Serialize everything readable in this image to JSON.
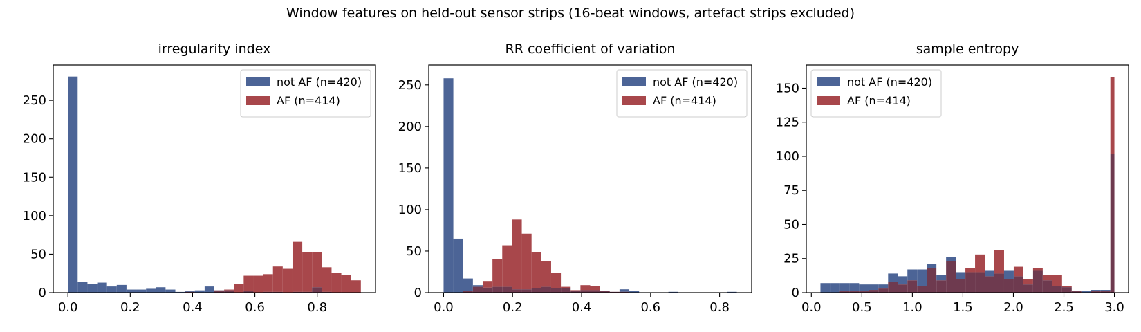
{
  "figure": {
    "suptitle": "Window features on held-out sensor strips (16-beat windows, artefact strips excluded)"
  },
  "colors": {
    "not_af": "#4c6496",
    "af": "#a8474b",
    "overlap": "#6e3a4f"
  },
  "chart_data": [
    {
      "type": "bar",
      "title": "irregularity index",
      "legend_position": "upper right",
      "xlim": [
        -0.047,
        0.987
      ],
      "ylim": [
        0,
        296
      ],
      "xticks": [
        0.0,
        0.2,
        0.4,
        0.6,
        0.8
      ],
      "xtick_labels": [
        "0.0",
        "0.2",
        "0.4",
        "0.6",
        "0.8"
      ],
      "yticks": [
        0,
        50,
        100,
        150,
        200,
        250
      ],
      "ytick_labels": [
        "0",
        "50",
        "100",
        "150",
        "200",
        "250"
      ],
      "bin_edges": [
        0.0,
        0.0313,
        0.0627,
        0.094,
        0.1253,
        0.1567,
        0.188,
        0.2193,
        0.2507,
        0.282,
        0.3133,
        0.3447,
        0.376,
        0.4073,
        0.4387,
        0.47,
        0.5013,
        0.5327,
        0.564,
        0.5953,
        0.6267,
        0.658,
        0.6893,
        0.7207,
        0.752,
        0.7833,
        0.8147,
        0.846,
        0.8773,
        0.9087,
        0.94
      ],
      "series": [
        {
          "name": "not AF (n=420)",
          "values": [
            281,
            14,
            11,
            13,
            8,
            10,
            4,
            4,
            5,
            7,
            4,
            1,
            2,
            3,
            8,
            3,
            3,
            0,
            2,
            0,
            1,
            1,
            0,
            1,
            1,
            7,
            1,
            0,
            0,
            0
          ]
        },
        {
          "name": "AF (n=414)",
          "values": [
            0,
            0,
            0,
            0,
            0,
            0,
            0,
            0,
            0,
            0,
            0,
            0,
            1,
            0,
            0,
            3,
            4,
            11,
            22,
            22,
            24,
            34,
            31,
            66,
            53,
            53,
            33,
            26,
            23,
            16
          ]
        }
      ]
    },
    {
      "type": "bar",
      "title": "RR coefficient of variation",
      "legend_position": "upper right",
      "xlim": [
        -0.043,
        0.893
      ],
      "ylim": [
        0,
        274
      ],
      "xticks": [
        0.0,
        0.2,
        0.4,
        0.6,
        0.8
      ],
      "xtick_labels": [
        "0.0",
        "0.2",
        "0.4",
        "0.6",
        "0.8"
      ],
      "yticks": [
        0,
        50,
        100,
        150,
        200,
        250
      ],
      "ytick_labels": [
        "0",
        "50",
        "100",
        "150",
        "200",
        "250"
      ],
      "bin_edges": [
        0.0,
        0.0283,
        0.0567,
        0.085,
        0.1133,
        0.1417,
        0.17,
        0.1983,
        0.2267,
        0.255,
        0.2833,
        0.3117,
        0.34,
        0.3683,
        0.3967,
        0.425,
        0.4533,
        0.4817,
        0.51,
        0.5383,
        0.5667,
        0.595,
        0.6233,
        0.6517,
        0.68,
        0.7083,
        0.7367,
        0.765,
        0.7933,
        0.8217,
        0.85
      ],
      "series": [
        {
          "name": "not AF (n=420)",
          "values": [
            258,
            65,
            17,
            9,
            6,
            7,
            7,
            4,
            4,
            5,
            7,
            5,
            5,
            2,
            3,
            3,
            2,
            1,
            4,
            2,
            0,
            0,
            0,
            1,
            0,
            0,
            0,
            0,
            0,
            1
          ]
        },
        {
          "name": "AF (n=414)",
          "values": [
            0,
            0,
            2,
            7,
            14,
            40,
            57,
            88,
            71,
            49,
            38,
            24,
            7,
            3,
            9,
            8,
            2,
            1,
            1,
            0,
            0,
            0,
            0,
            0,
            0,
            0,
            0,
            0,
            0,
            0
          ]
        }
      ]
    },
    {
      "type": "bar",
      "title": "sample entropy",
      "legend_position": "upper left",
      "xlim": [
        -0.05,
        3.14
      ],
      "ylim": [
        0,
        167
      ],
      "xticks": [
        0.0,
        0.5,
        1.0,
        1.5,
        2.0,
        2.5,
        3.0
      ],
      "xtick_labels": [
        "0.0",
        "0.5",
        "1.0",
        "1.5",
        "2.0",
        "2.5",
        "3.0"
      ],
      "yticks": [
        0,
        25,
        50,
        75,
        100,
        125,
        150
      ],
      "ytick_labels": [
        "0",
        "25",
        "50",
        "75",
        "100",
        "125",
        "150"
      ],
      "bin_edges": [
        0.09,
        0.1857,
        0.2813,
        0.377,
        0.4727,
        0.5683,
        0.664,
        0.7597,
        0.8553,
        0.951,
        1.0467,
        1.1423,
        1.238,
        1.3337,
        1.4293,
        1.525,
        1.6207,
        1.7163,
        1.812,
        1.9077,
        2.0033,
        2.099,
        2.1947,
        2.2903,
        2.386,
        2.4817,
        2.5773,
        2.673,
        2.7687,
        2.8643,
        2.96,
        3.0
      ],
      "series": [
        {
          "name": "not AF (n=420)",
          "values": [
            7,
            7,
            7,
            7,
            6,
            6,
            6,
            14,
            12,
            17,
            17,
            21,
            13,
            26,
            15,
            15,
            15,
            16,
            14,
            16,
            12,
            6,
            16,
            9,
            5,
            4,
            1,
            1,
            2,
            2,
            102
          ]
        },
        {
          "name": "AF (n=414)",
          "values": [
            0,
            0,
            1,
            1,
            1,
            2,
            3,
            8,
            6,
            9,
            5,
            18,
            9,
            23,
            10,
            18,
            28,
            12,
            31,
            10,
            19,
            10,
            18,
            13,
            13,
            5,
            1,
            0,
            1,
            1,
            158
          ]
        }
      ]
    }
  ]
}
